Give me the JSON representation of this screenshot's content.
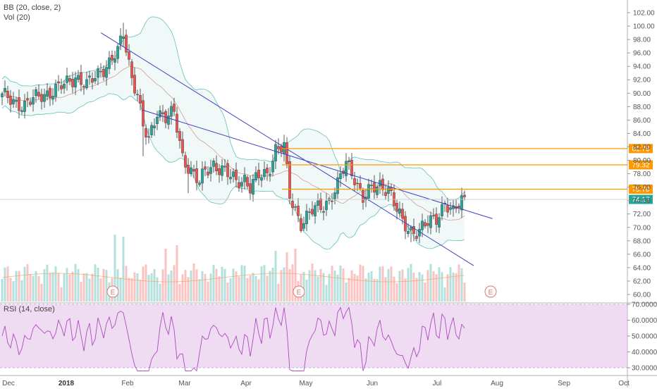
{
  "chart_data": {
    "type": "candlestick",
    "legend": {
      "bb_label": "BB (20, close, 2)",
      "vol_label": "Vol (20)",
      "rsi_label": "RSI (14, close)"
    },
    "price_axis": {
      "min": 60,
      "max": 102,
      "ticks": [
        "102.00",
        "100.00",
        "98.00",
        "96.00",
        "94.00",
        "92.00",
        "90.00",
        "88.00",
        "86.00",
        "84.00",
        "82.00",
        "80.00",
        "78.00",
        "76.00",
        "74.00",
        "72.00",
        "70.00",
        "68.00",
        "66.00",
        "64.00",
        "62.00",
        "60.00"
      ]
    },
    "rsi_axis": {
      "min": 27,
      "max": 71,
      "ticks": [
        "70.0000",
        "60.0000",
        "50.0000",
        "40.0000",
        "30.0000"
      ],
      "band": [
        30,
        70
      ]
    },
    "time_axis": {
      "labels": [
        "Dec",
        "2018",
        "Feb",
        "Mar",
        "Apr",
        "May",
        "Jun",
        "Jul",
        "Aug",
        "Sep",
        "Oct"
      ],
      "bold": [
        "2018"
      ]
    },
    "price_levels": [
      {
        "value": 81.75,
        "label": "81.75",
        "color": "#ff9800"
      },
      {
        "value": 79.32,
        "label": "79.32",
        "color": "#ff9800"
      },
      {
        "value": 75.7,
        "label": "75.70",
        "color": "#ff9800"
      }
    ],
    "last_price": {
      "value": 74.17,
      "label": "74.17",
      "color": "#26a69a"
    },
    "earnings_markers": [
      {
        "label": "E"
      },
      {
        "label": "E"
      },
      {
        "label": "E"
      }
    ],
    "trendlines": [
      {
        "from": [
          0.161,
          99.0
        ],
        "to": [
          0.755,
          64.3
        ]
      },
      {
        "from": [
          0.227,
          87.5
        ],
        "to": [
          0.785,
          71.3
        ]
      }
    ],
    "colors": {
      "up": "#26a69a",
      "down": "#ef5350",
      "band_fill": "#26a69a",
      "basis": "#c0504d",
      "trendline": "#3f3fbf",
      "vol_ma": "#f4a460",
      "rsi_line": "#9c27b0",
      "rsi_band": "#e1bee7"
    }
  }
}
